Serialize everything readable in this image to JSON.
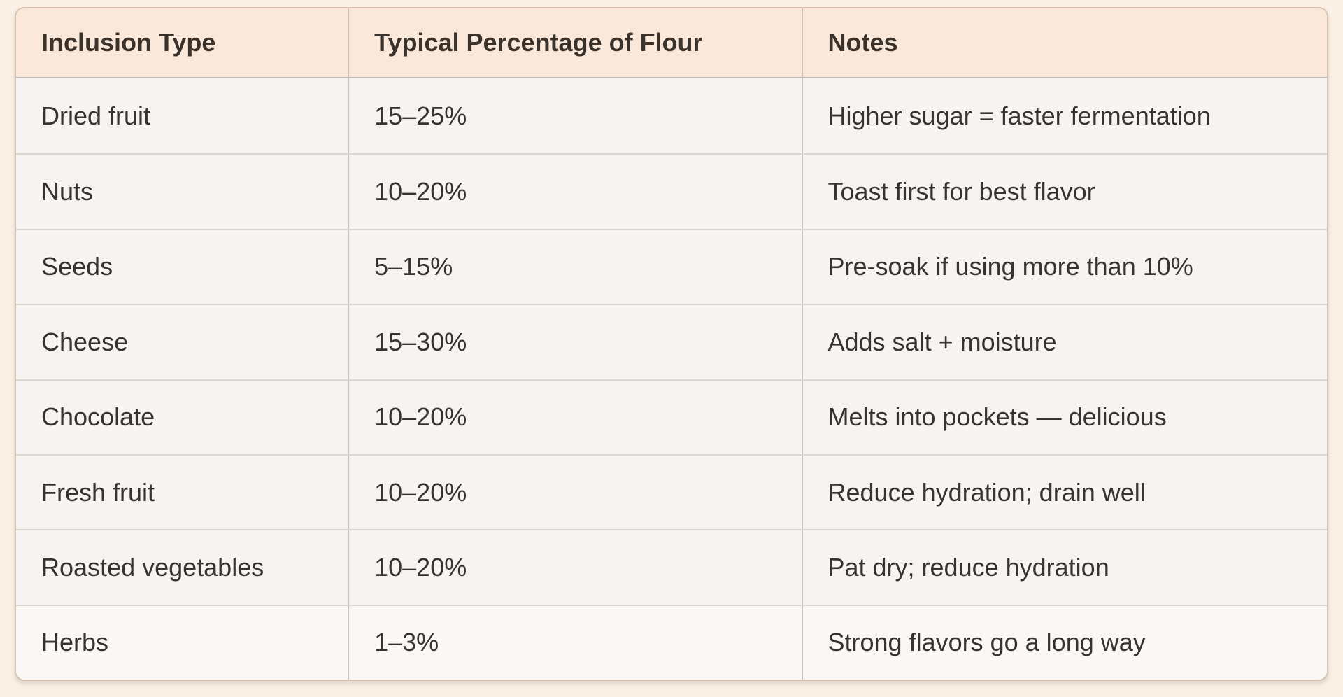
{
  "colors": {
    "page-bg": "#fcf1e7",
    "card-border": "#d8c3b1",
    "header-bg": "#fae9db",
    "header-text": "#3a322b",
    "row-bg": "#f6f4f2",
    "last-row-bg": "#f9f8f6",
    "text": "#37332e",
    "row-border": "#ddd6d0",
    "col-border": "#c9c2bc",
    "header-sep": "#bcb6b1"
  },
  "table": {
    "columns": [
      {
        "label": "Inclusion Type"
      },
      {
        "label": "Typical Percentage of Flour"
      },
      {
        "label": "Notes"
      }
    ],
    "rows": [
      [
        "Dried fruit",
        "15–25%",
        "Higher sugar = faster fermentation"
      ],
      [
        "Nuts",
        "10–20%",
        "Toast first for best flavor"
      ],
      [
        "Seeds",
        "5–15%",
        "Pre-soak if using more than 10%"
      ],
      [
        "Cheese",
        "15–30%",
        "Adds salt + moisture"
      ],
      [
        "Chocolate",
        "10–20%",
        "Melts into pockets — delicious"
      ],
      [
        "Fresh fruit",
        "10–20%",
        "Reduce hydration; drain well"
      ],
      [
        "Roasted vegetables",
        "10–20%",
        "Pat dry; reduce hydration"
      ],
      [
        "Herbs",
        "1–3%",
        "Strong flavors go a long way"
      ]
    ]
  }
}
